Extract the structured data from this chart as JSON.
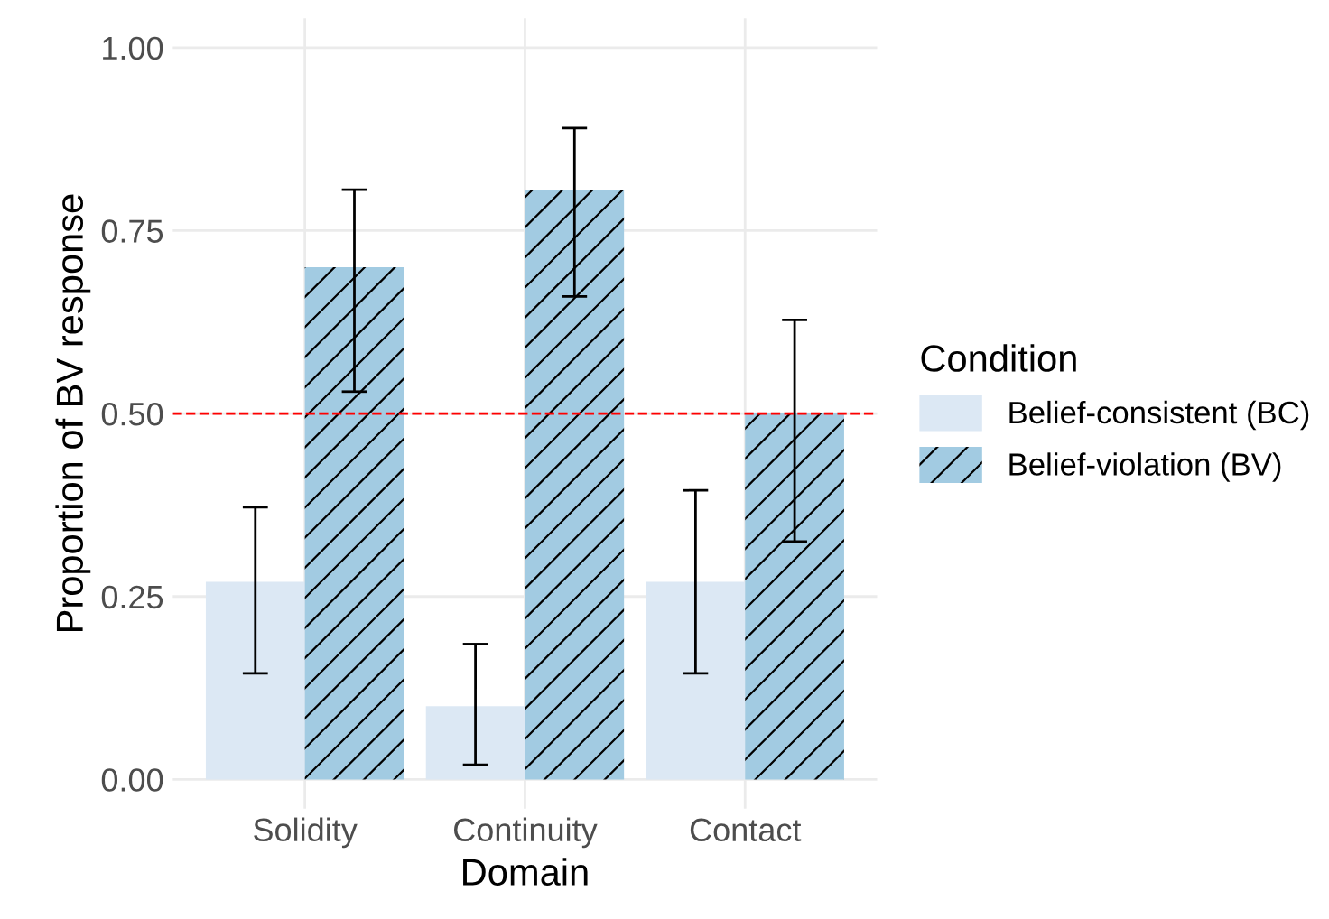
{
  "chart_data": {
    "type": "bar",
    "xlabel": "Domain",
    "ylabel": "Proportion of BV response",
    "legend_title": "Condition",
    "categories": [
      "Solidity",
      "Continuity",
      "Contact"
    ],
    "series": [
      {
        "name": "Belief-consistent (BC)",
        "color": "#dce8f4",
        "values": [
          0.27,
          0.1,
          0.27
        ],
        "errors": [
          [
            0.145,
            0.372
          ],
          [
            0.02,
            0.185
          ],
          [
            0.145,
            0.395
          ]
        ]
      },
      {
        "name": "Belief-violation (BV)",
        "color": "#a2cbe2",
        "values": [
          0.7,
          0.805,
          0.5
        ],
        "errors": [
          [
            0.53,
            0.806
          ],
          [
            0.66,
            0.89
          ],
          [
            0.325,
            0.628
          ]
        ]
      }
    ],
    "ylim": [
      -0.04,
      1.04
    ],
    "yticks": [
      {
        "value": 0,
        "label": "0.00"
      },
      {
        "value": 0.25,
        "label": "0.25"
      },
      {
        "value": 0.5,
        "label": "0.50"
      },
      {
        "value": 0.75,
        "label": "0.75"
      },
      {
        "value": 1,
        "label": "1.00"
      }
    ],
    "ref_lines": [
      {
        "axis": "y",
        "value": 0.5,
        "color": "#ff0000",
        "line_style": "dashed"
      }
    ],
    "grid": true,
    "legend": "right"
  }
}
